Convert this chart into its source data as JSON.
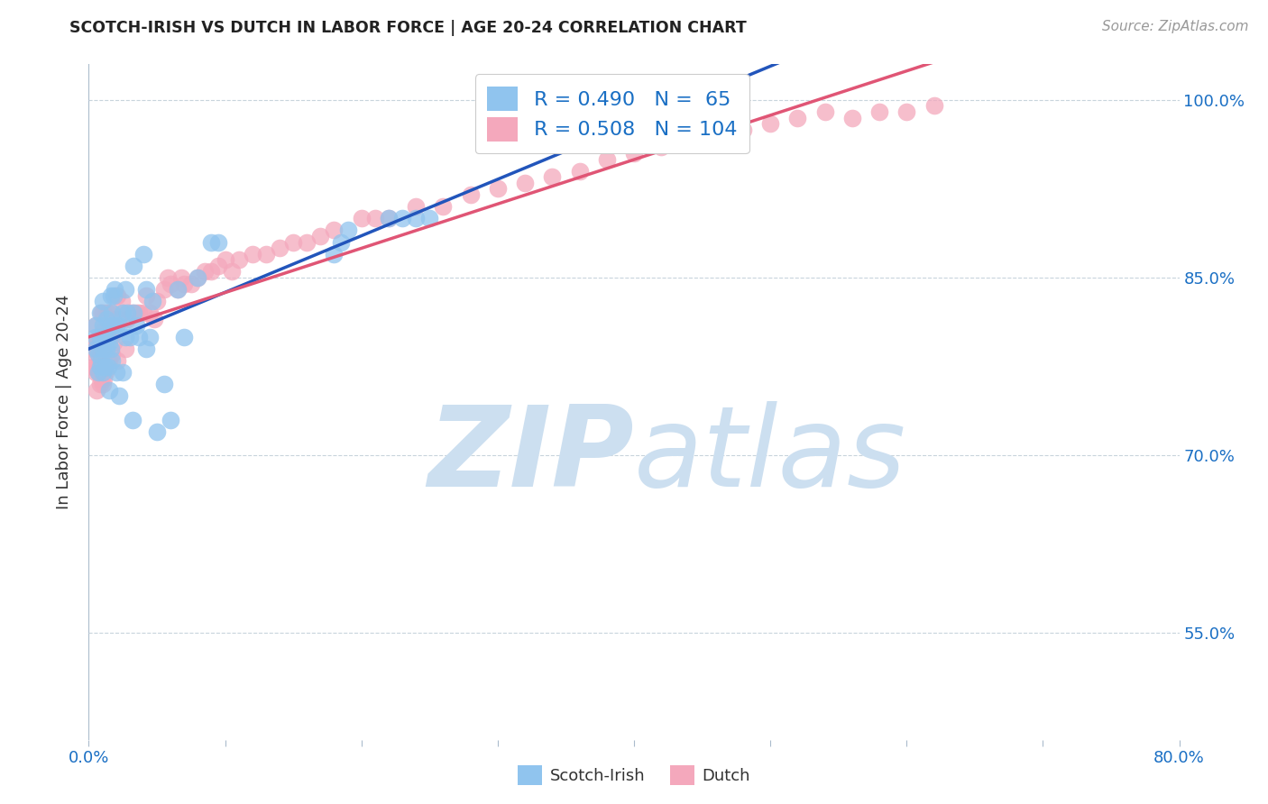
{
  "title": "SCOTCH-IRISH VS DUTCH IN LABOR FORCE | AGE 20-24 CORRELATION CHART",
  "source": "Source: ZipAtlas.com",
  "ylabel": "In Labor Force | Age 20-24",
  "xlim": [
    0.0,
    0.8
  ],
  "ylim": [
    0.46,
    1.03
  ],
  "ytick_positions": [
    0.55,
    0.7,
    0.85,
    1.0
  ],
  "xtick_positions": [
    0.0,
    0.1,
    0.2,
    0.3,
    0.4,
    0.5,
    0.6,
    0.7,
    0.8
  ],
  "scotch_irish_R": 0.49,
  "scotch_irish_N": 65,
  "dutch_R": 0.508,
  "dutch_N": 104,
  "scotch_irish_color": "#90C4EE",
  "dutch_color": "#F4A8BC",
  "scotch_irish_line_color": "#2255BB",
  "dutch_line_color": "#E05575",
  "legend_text_color": "#1A6FC4",
  "watermark_color": "#CCDFF0",
  "background_color": "#FFFFFF",
  "scotch_irish_x": [
    0.005,
    0.005,
    0.005,
    0.007,
    0.007,
    0.008,
    0.008,
    0.008,
    0.009,
    0.009,
    0.01,
    0.01,
    0.01,
    0.01,
    0.012,
    0.012,
    0.013,
    0.013,
    0.014,
    0.014,
    0.015,
    0.015,
    0.016,
    0.016,
    0.016,
    0.017,
    0.017,
    0.018,
    0.018,
    0.019,
    0.02,
    0.02,
    0.022,
    0.022,
    0.025,
    0.025,
    0.027,
    0.027,
    0.028,
    0.03,
    0.032,
    0.033,
    0.033,
    0.035,
    0.037,
    0.04,
    0.042,
    0.042,
    0.045,
    0.047,
    0.05,
    0.055,
    0.06,
    0.065,
    0.07,
    0.08,
    0.09,
    0.095,
    0.18,
    0.185,
    0.19,
    0.22,
    0.23,
    0.24,
    0.25
  ],
  "scotch_irish_y": [
    0.79,
    0.8,
    0.81,
    0.77,
    0.785,
    0.775,
    0.8,
    0.82,
    0.78,
    0.8,
    0.77,
    0.79,
    0.81,
    0.83,
    0.775,
    0.8,
    0.79,
    0.815,
    0.775,
    0.8,
    0.755,
    0.795,
    0.79,
    0.81,
    0.835,
    0.78,
    0.82,
    0.81,
    0.835,
    0.84,
    0.77,
    0.81,
    0.75,
    0.81,
    0.77,
    0.82,
    0.8,
    0.84,
    0.82,
    0.8,
    0.73,
    0.82,
    0.86,
    0.81,
    0.8,
    0.87,
    0.79,
    0.84,
    0.8,
    0.83,
    0.72,
    0.76,
    0.73,
    0.84,
    0.8,
    0.85,
    0.88,
    0.88,
    0.87,
    0.88,
    0.89,
    0.9,
    0.9,
    0.9,
    0.9
  ],
  "dutch_x": [
    0.003,
    0.003,
    0.004,
    0.005,
    0.005,
    0.005,
    0.005,
    0.006,
    0.006,
    0.006,
    0.007,
    0.007,
    0.007,
    0.008,
    0.008,
    0.008,
    0.009,
    0.009,
    0.009,
    0.009,
    0.01,
    0.01,
    0.01,
    0.01,
    0.011,
    0.011,
    0.011,
    0.012,
    0.012,
    0.013,
    0.013,
    0.013,
    0.014,
    0.014,
    0.014,
    0.015,
    0.015,
    0.016,
    0.016,
    0.017,
    0.017,
    0.018,
    0.02,
    0.02,
    0.021,
    0.021,
    0.022,
    0.024,
    0.025,
    0.027,
    0.028,
    0.03,
    0.032,
    0.035,
    0.037,
    0.04,
    0.042,
    0.045,
    0.048,
    0.05,
    0.055,
    0.058,
    0.06,
    0.065,
    0.068,
    0.07,
    0.075,
    0.08,
    0.085,
    0.09,
    0.095,
    0.1,
    0.105,
    0.11,
    0.12,
    0.13,
    0.14,
    0.15,
    0.16,
    0.17,
    0.18,
    0.2,
    0.21,
    0.22,
    0.24,
    0.26,
    0.28,
    0.3,
    0.32,
    0.34,
    0.36,
    0.38,
    0.4,
    0.42,
    0.44,
    0.46,
    0.48,
    0.5,
    0.52,
    0.54,
    0.56,
    0.58,
    0.6,
    0.62
  ],
  "dutch_y": [
    0.775,
    0.79,
    0.775,
    0.77,
    0.785,
    0.795,
    0.81,
    0.755,
    0.775,
    0.795,
    0.77,
    0.785,
    0.8,
    0.76,
    0.78,
    0.8,
    0.765,
    0.785,
    0.8,
    0.82,
    0.76,
    0.78,
    0.8,
    0.82,
    0.765,
    0.785,
    0.805,
    0.77,
    0.795,
    0.78,
    0.8,
    0.82,
    0.78,
    0.8,
    0.82,
    0.78,
    0.8,
    0.8,
    0.82,
    0.785,
    0.81,
    0.795,
    0.815,
    0.835,
    0.78,
    0.835,
    0.815,
    0.83,
    0.82,
    0.79,
    0.815,
    0.82,
    0.82,
    0.82,
    0.82,
    0.82,
    0.835,
    0.82,
    0.815,
    0.83,
    0.84,
    0.85,
    0.845,
    0.84,
    0.85,
    0.845,
    0.845,
    0.85,
    0.855,
    0.855,
    0.86,
    0.865,
    0.855,
    0.865,
    0.87,
    0.87,
    0.875,
    0.88,
    0.88,
    0.885,
    0.89,
    0.9,
    0.9,
    0.9,
    0.91,
    0.91,
    0.92,
    0.925,
    0.93,
    0.935,
    0.94,
    0.95,
    0.955,
    0.96,
    0.965,
    0.97,
    0.975,
    0.98,
    0.985,
    0.99,
    0.985,
    0.99,
    0.99,
    0.995
  ]
}
